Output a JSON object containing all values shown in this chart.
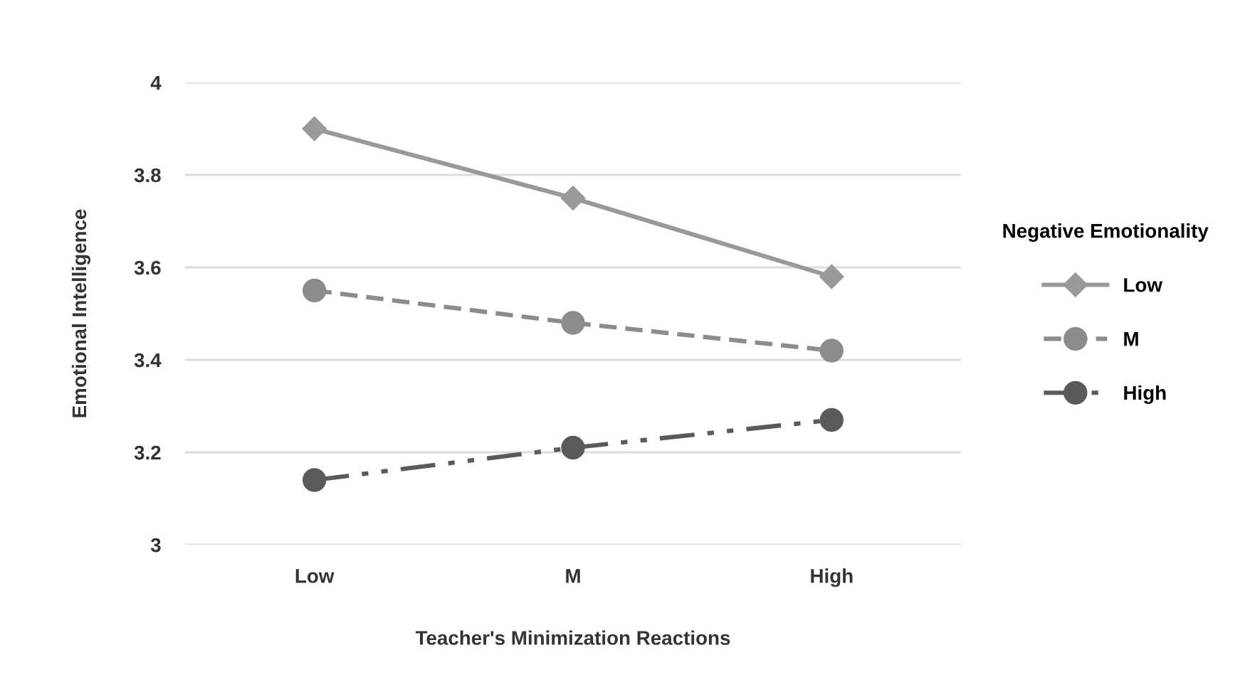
{
  "chart_data": {
    "type": "line",
    "xlabel": "Teacher's Minimization Reactions",
    "ylabel": "Emotional Intelligence",
    "legend_title": "Negative Emotionality",
    "categories": [
      "Low",
      "M",
      "High"
    ],
    "series": [
      {
        "name": "Low",
        "color": "#999999",
        "values": [
          3.9,
          3.75,
          3.58
        ],
        "marker": "diamond",
        "line_style": "solid"
      },
      {
        "name": "M",
        "color": "#8c8c8c",
        "values": [
          3.55,
          3.48,
          3.42
        ],
        "marker": "circle",
        "line_style": "dashed"
      },
      {
        "name": "High",
        "color": "#5a5a5a",
        "values": [
          3.14,
          3.21,
          3.27
        ],
        "marker": "circle",
        "line_style": "dashdotdot"
      }
    ],
    "ylim": [
      3,
      4
    ],
    "yticks": [
      3,
      3.2,
      3.4,
      3.6,
      3.8,
      4
    ],
    "grid": "y",
    "legend": "right"
  }
}
